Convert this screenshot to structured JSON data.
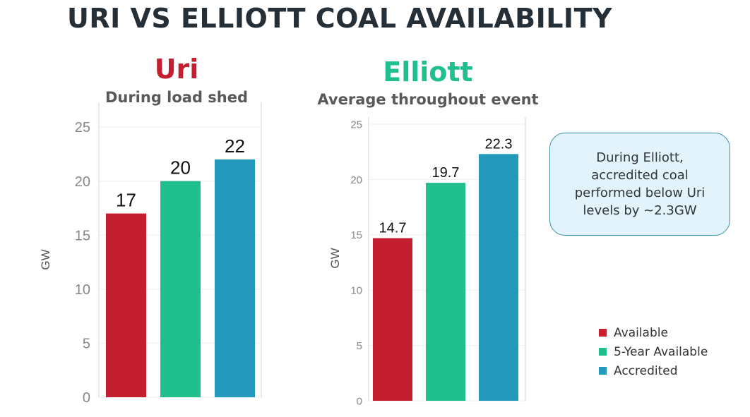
{
  "page": {
    "title": "URI VS ELLIOTT COAL AVAILABILITY",
    "callout": "During Elliott, accredited coal performed below Uri levels by ~2.3GW"
  },
  "colors": {
    "available": "#c41f2e",
    "five_year": "#1fbf8e",
    "accredited": "#2399bb",
    "uri_title": "#c41f2e",
    "elliott_title": "#1fbf8e"
  },
  "legend": {
    "position": "bottom-right",
    "items": [
      {
        "label": "Available",
        "color": "#c41f2e"
      },
      {
        "label": "5-Year Available",
        "color": "#1fbf8e"
      },
      {
        "label": "Accredited",
        "color": "#2399bb"
      }
    ]
  },
  "chart_data": [
    {
      "type": "bar",
      "title": "Uri",
      "subtitle": "During load shed",
      "ylabel": "GW",
      "xlabel": "",
      "ylim": [
        0,
        25
      ],
      "yticks": [
        0,
        5,
        10,
        15,
        20,
        25
      ],
      "grid": true,
      "categories": [
        "Available",
        "5-Year Available",
        "Accredited"
      ],
      "values": [
        17,
        20,
        22
      ],
      "value_labels": [
        "17",
        "20",
        "22"
      ],
      "colors": [
        "#c41f2e",
        "#1fbf8e",
        "#2399bb"
      ]
    },
    {
      "type": "bar",
      "title": "Elliott",
      "subtitle": "Average throughout event",
      "ylabel": "GW",
      "xlabel": "",
      "ylim": [
        0,
        25
      ],
      "yticks": [
        0,
        5,
        10,
        15,
        20,
        25
      ],
      "grid": true,
      "categories": [
        "Available",
        "5-Year Available",
        "Accredited"
      ],
      "values": [
        14.7,
        19.7,
        22.3
      ],
      "value_labels": [
        "14.7",
        "19.7",
        "22.3"
      ],
      "colors": [
        "#c41f2e",
        "#1fbf8e",
        "#2399bb"
      ]
    }
  ]
}
